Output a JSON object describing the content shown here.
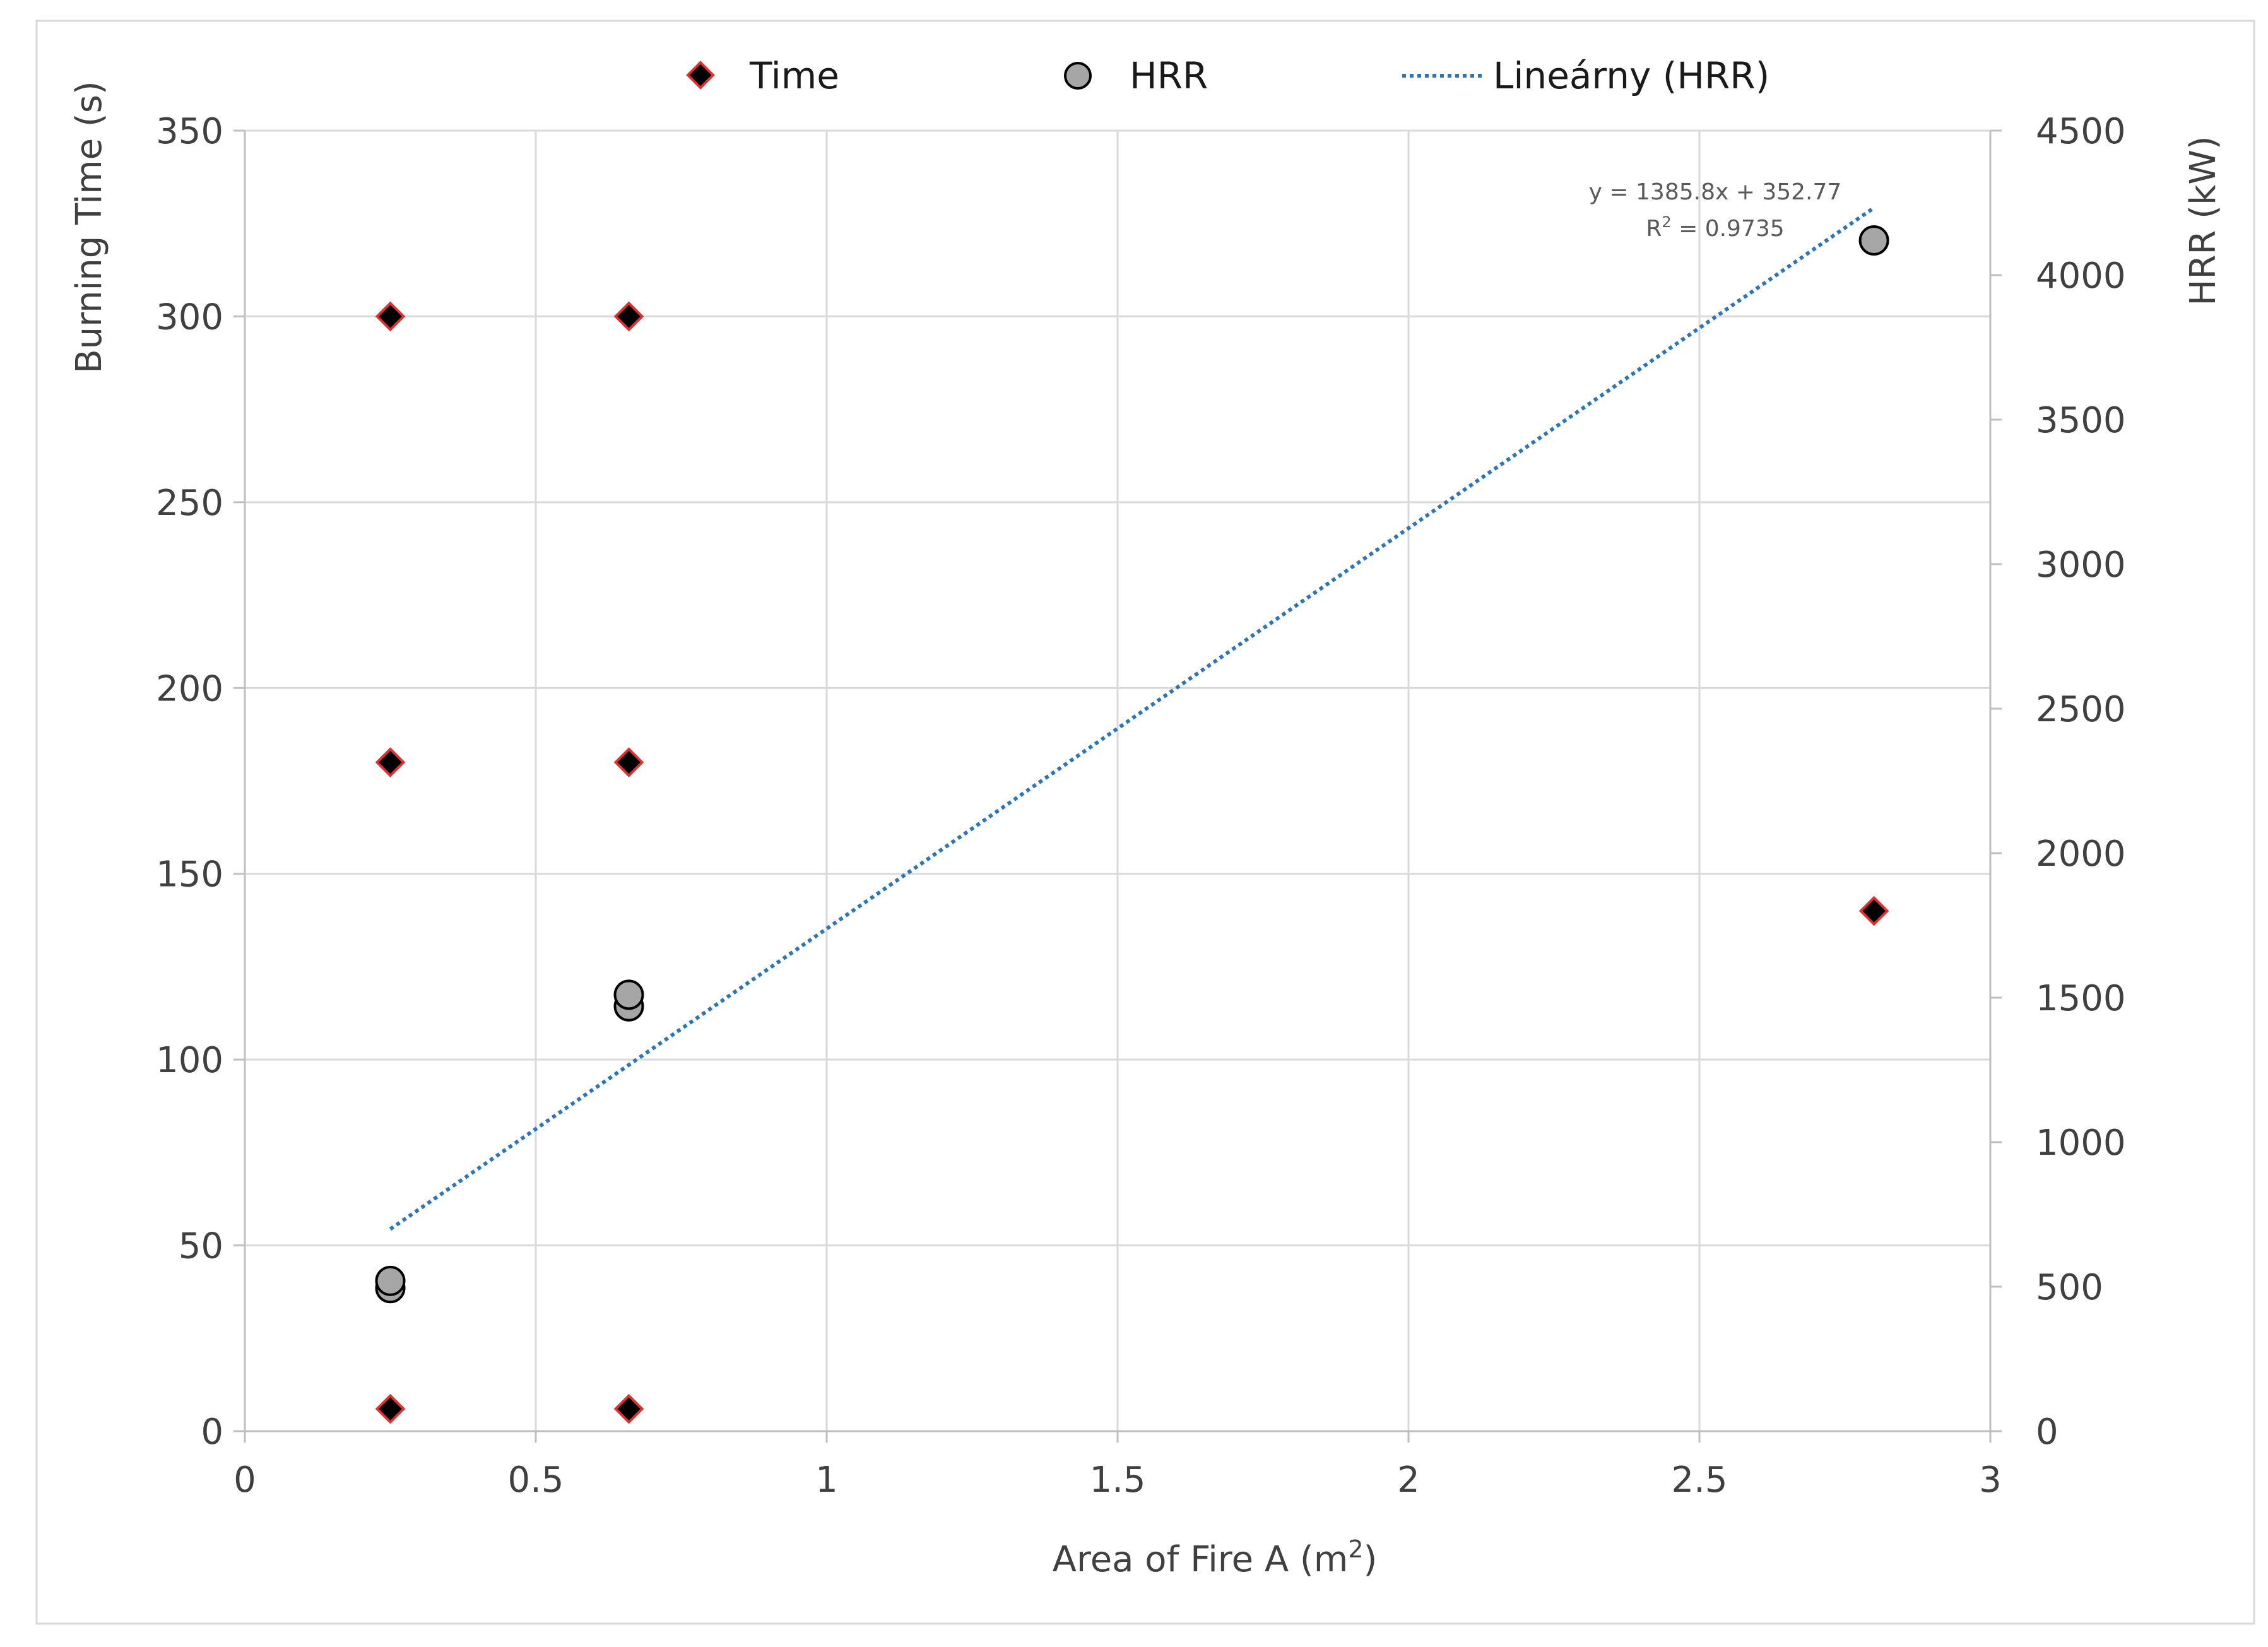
{
  "chart_data": {
    "type": "scatter",
    "title": "",
    "x_axis": {
      "label": "Area of Fire A (m",
      "label_sup": "2",
      "label_end": ")",
      "range": [
        0,
        3
      ],
      "ticks": [
        0,
        0.5,
        1,
        1.5,
        2,
        2.5,
        3
      ],
      "tick_labels": [
        "0",
        "0.5",
        "1",
        "1.5",
        "2",
        "2.5",
        "3"
      ]
    },
    "y_left_axis": {
      "label": "Burning Time (s)",
      "range": [
        0,
        350
      ],
      "ticks": [
        0,
        50,
        100,
        150,
        200,
        250,
        300,
        350
      ],
      "tick_labels": [
        "0",
        "50",
        "100",
        "150",
        "200",
        "250",
        "300",
        "350"
      ]
    },
    "y_right_axis": {
      "label": "HRR  (kW)",
      "range": [
        0,
        4500
      ],
      "ticks": [
        0,
        500,
        1000,
        1500,
        2000,
        2500,
        3000,
        3500,
        4000,
        4500
      ],
      "tick_labels": [
        "0",
        "500",
        "1000",
        "1500",
        "2000",
        "2500",
        "3000",
        "3500",
        "4000",
        "4500"
      ]
    },
    "grid": true,
    "legend_position": "top-center",
    "series": [
      {
        "name": "Time",
        "axis": "left",
        "marker": "diamond",
        "fill": "#000000",
        "stroke": "#e03030",
        "points": [
          {
            "x": 0.25,
            "y": 6
          },
          {
            "x": 0.25,
            "y": 180
          },
          {
            "x": 0.25,
            "y": 300
          },
          {
            "x": 0.66,
            "y": 6
          },
          {
            "x": 0.66,
            "y": 180
          },
          {
            "x": 0.66,
            "y": 300
          },
          {
            "x": 2.8,
            "y": 140
          }
        ]
      },
      {
        "name": "HRR",
        "axis": "right",
        "marker": "circle",
        "fill": "#a6a6a6",
        "stroke": "#000000",
        "points": [
          {
            "x": 0.25,
            "y": 495
          },
          {
            "x": 0.25,
            "y": 520
          },
          {
            "x": 0.66,
            "y": 1470
          },
          {
            "x": 0.66,
            "y": 1510
          },
          {
            "x": 2.8,
            "y": 4120
          }
        ]
      }
    ],
    "trendline": {
      "name": "Lineárny (HRR)",
      "axis": "right",
      "color": "#2e75b6",
      "style": "dotted",
      "slope": 1385.8,
      "intercept": 352.77,
      "x_range": [
        0.25,
        2.8
      ],
      "equation": "y = 1385.8x + 352.77",
      "r2_prefix": "R",
      "r2_sup": "2",
      "r2_value": " = 0.9735"
    }
  }
}
